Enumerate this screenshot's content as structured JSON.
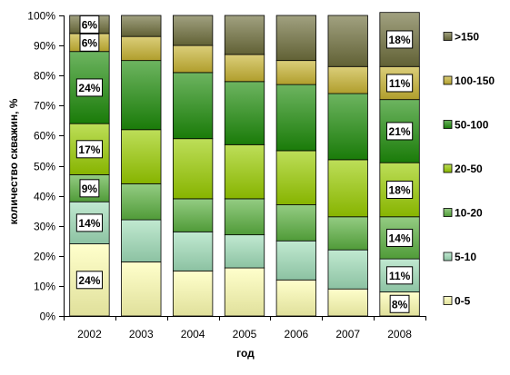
{
  "chart_data": {
    "type": "bar",
    "stacked": true,
    "percent_stacked": true,
    "categories": [
      "2002",
      "2003",
      "2004",
      "2005",
      "2006",
      "2007",
      "2008"
    ],
    "xlabel": "год",
    "ylabel": "количество скважин, %",
    "ylim": [
      0,
      100
    ],
    "yticks": [
      "0%",
      "10%",
      "20%",
      "30%",
      "40%",
      "50%",
      "60%",
      "70%",
      "80%",
      "90%",
      "100%"
    ],
    "grid": false,
    "legend_position": "right",
    "series": [
      {
        "name": "0-5",
        "color": "#FFFFB0",
        "values": [
          24,
          18,
          15,
          16,
          12,
          9,
          8
        ],
        "labels": [
          "24%",
          "",
          "",
          "",
          "",
          "",
          "8%"
        ]
      },
      {
        "name": "5-10",
        "color": "#9FDDB8",
        "values": [
          14,
          14,
          13,
          11,
          13,
          13,
          11
        ],
        "labels": [
          "14%",
          "",
          "",
          "",
          "",
          "",
          "11%"
        ]
      },
      {
        "name": "10-20",
        "color": "#5BB040",
        "values": [
          9,
          12,
          11,
          12,
          12,
          11,
          14
        ],
        "labels": [
          "9%",
          "",
          "",
          "",
          "",
          "",
          "14%"
        ]
      },
      {
        "name": "20-50",
        "color": "#99CC00",
        "values": [
          17,
          18,
          20,
          18,
          18,
          19,
          18
        ],
        "labels": [
          "17%",
          "",
          "",
          "",
          "",
          "",
          "18%"
        ]
      },
      {
        "name": "50-100",
        "color": "#1E8C0A",
        "values": [
          24,
          23,
          22,
          21,
          22,
          22,
          21
        ],
        "labels": [
          "24%",
          "",
          "",
          "",
          "",
          "",
          "21%"
        ]
      },
      {
        "name": "100-150",
        "color": "#C8B432",
        "values": [
          6,
          8,
          9,
          9,
          8,
          9,
          11
        ],
        "labels": [
          "6%",
          "",
          "",
          "",
          "",
          "",
          "11%"
        ]
      },
      {
        "name": ">150",
        "color": "#6E6E3C",
        "values": [
          6,
          7,
          10,
          13,
          15,
          17,
          18
        ],
        "labels": [
          "6%",
          "",
          "",
          "",
          "",
          "",
          "18%"
        ]
      }
    ]
  }
}
